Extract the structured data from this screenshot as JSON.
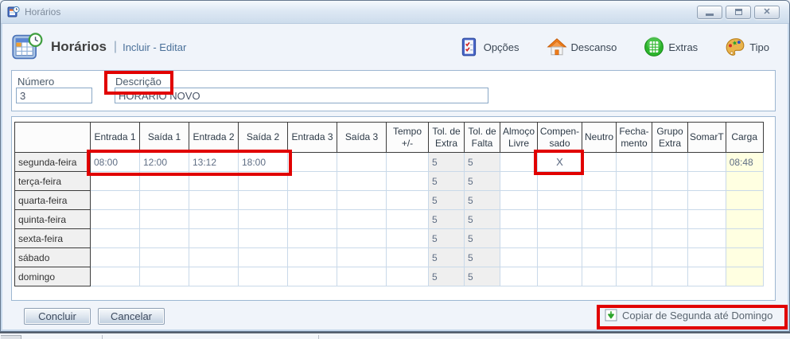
{
  "window": {
    "title": "Horários"
  },
  "header": {
    "title": "Horários",
    "separator": "|",
    "subtitle": "Incluir - Editar",
    "toolbar": [
      {
        "label": "Opções"
      },
      {
        "label": "Descanso"
      },
      {
        "label": "Extras"
      },
      {
        "label": "Tipo"
      }
    ]
  },
  "form": {
    "numero": {
      "label": "Número",
      "value": "3"
    },
    "descricao": {
      "label": "Descrição",
      "value": "HORARIO NOVO"
    }
  },
  "table": {
    "columns": [
      "",
      "Entrada 1",
      "Saída 1",
      "Entrada 2",
      "Saída 2",
      "Entrada 3",
      "Saída 3",
      "Tempo\n+/-",
      "Tol. de\nExtra",
      "Tol. de\nFalta",
      "Almoço\nLivre",
      "Compen-\nsado",
      "Neutro",
      "Fecha-\nmento",
      "Grupo\nExtra",
      "SomarT",
      "Carga"
    ],
    "rows": [
      {
        "day": "segunda-feira",
        "cells": [
          "08:00",
          "12:00",
          "13:12",
          "18:00",
          "",
          "",
          "",
          "5",
          "5",
          "",
          "X",
          "",
          "",
          "",
          "",
          "08:48"
        ]
      },
      {
        "day": "terça-feira",
        "cells": [
          "",
          "",
          "",
          "",
          "",
          "",
          "",
          "5",
          "5",
          "",
          "",
          "",
          "",
          "",
          "",
          ""
        ]
      },
      {
        "day": "quarta-feira",
        "cells": [
          "",
          "",
          "",
          "",
          "",
          "",
          "",
          "5",
          "5",
          "",
          "",
          "",
          "",
          "",
          "",
          ""
        ]
      },
      {
        "day": "quinta-feira",
        "cells": [
          "",
          "",
          "",
          "",
          "",
          "",
          "",
          "5",
          "5",
          "",
          "",
          "",
          "",
          "",
          "",
          ""
        ]
      },
      {
        "day": "sexta-feira",
        "cells": [
          "",
          "",
          "",
          "",
          "",
          "",
          "",
          "5",
          "5",
          "",
          "",
          "",
          "",
          "",
          "",
          ""
        ]
      },
      {
        "day": "sábado",
        "cells": [
          "",
          "",
          "",
          "",
          "",
          "",
          "",
          "5",
          "5",
          "",
          "",
          "",
          "",
          "",
          "",
          ""
        ]
      },
      {
        "day": "domingo",
        "cells": [
          "",
          "",
          "",
          "",
          "",
          "",
          "",
          "5",
          "5",
          "",
          "",
          "",
          "",
          "",
          "",
          ""
        ]
      }
    ]
  },
  "footer": {
    "concluir_label": "Concluir",
    "cancelar_label": "Cancelar",
    "copiar_label": "Copiar de Segunda até Domingo"
  },
  "colors": {
    "annotation_red": "#e10000",
    "carga_bg": "#ffffe1",
    "subtitle_blue": "#4a7099"
  }
}
